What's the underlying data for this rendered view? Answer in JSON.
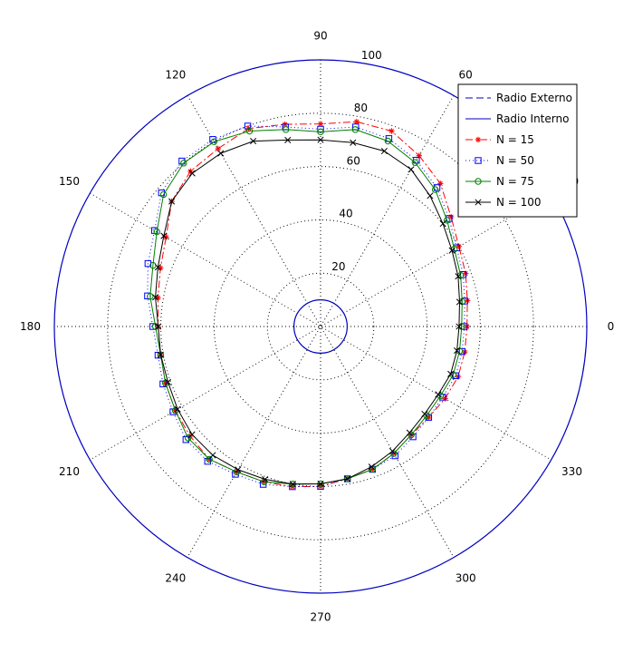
{
  "chart_data": {
    "type": "polar-line",
    "title": "",
    "r_max": 100,
    "radial_tick_values": [
      20,
      40,
      60,
      80,
      100
    ],
    "radial_tick_labels": [
      "20",
      "40",
      "60",
      "80",
      "100"
    ],
    "angle_tick_values": [
      0,
      30,
      60,
      90,
      120,
      150,
      180,
      210,
      240,
      270,
      300,
      330
    ],
    "angle_tick_labels": [
      "0",
      "30",
      "60",
      "90",
      "120",
      "150",
      "180",
      "210",
      "240",
      "270",
      "300",
      "330"
    ],
    "grid": true,
    "legend_position": "top-right",
    "circles": [
      {
        "name": "Radio Externo",
        "r": 100,
        "color": "#0000bf",
        "style": "dashed"
      },
      {
        "name": "Radio Interno",
        "r": 10,
        "color": "#0000bf",
        "style": "solid"
      }
    ],
    "profile_angles": [
      0,
      10,
      20,
      30,
      40,
      50,
      60,
      70,
      80,
      90,
      100,
      110,
      120,
      130,
      140,
      150,
      160,
      170,
      180,
      190,
      200,
      210,
      220,
      230,
      240,
      250,
      260,
      270,
      280,
      290,
      300,
      310,
      320,
      330,
      340,
      350
    ],
    "series": [
      {
        "name": "N = 15",
        "color": "#ff0000",
        "line": "dash-dot",
        "marker": "star",
        "r": [
          55,
          56,
          58,
          60,
          64,
          70,
          74,
          78,
          78,
          76,
          77,
          79,
          77,
          76,
          73,
          67,
          64,
          62,
          61,
          61,
          62,
          63,
          64,
          65,
          63,
          62,
          61,
          60,
          58,
          57,
          55,
          53,
          53,
          54,
          55,
          55
        ]
      },
      {
        "name": "N = 50",
        "color": "#0000ff",
        "line": "dotted",
        "marker": "square",
        "r": [
          54,
          55,
          57,
          59,
          63,
          68,
          72,
          75,
          76,
          74,
          76,
          80,
          81,
          81,
          78,
          72,
          69,
          66,
          63,
          62,
          63,
          64,
          66,
          66,
          64,
          63,
          61,
          60,
          58,
          57,
          56,
          54,
          53,
          53,
          54,
          54
        ]
      },
      {
        "name": "N = 75",
        "color": "#008000",
        "line": "solid",
        "marker": "circle",
        "r": [
          53,
          54,
          56,
          58,
          62,
          67,
          71,
          74,
          75,
          73,
          75,
          78,
          80,
          80,
          77,
          71,
          67,
          65,
          62,
          61,
          62,
          63,
          65,
          65,
          63,
          62,
          60,
          59,
          58,
          57,
          55,
          53,
          52,
          52,
          53,
          53
        ]
      },
      {
        "name": "N = 100",
        "color": "#000000",
        "line": "solid",
        "marker": "x",
        "r": [
          52,
          53,
          55,
          57,
          60,
          64,
          68,
          70,
          70,
          70,
          71,
          74,
          75,
          75,
          73,
          68,
          65,
          63,
          61,
          61,
          61,
          62,
          63,
          63,
          62,
          61,
          60,
          59,
          58,
          56,
          54,
          52,
          51,
          51,
          52,
          52
        ]
      }
    ]
  }
}
